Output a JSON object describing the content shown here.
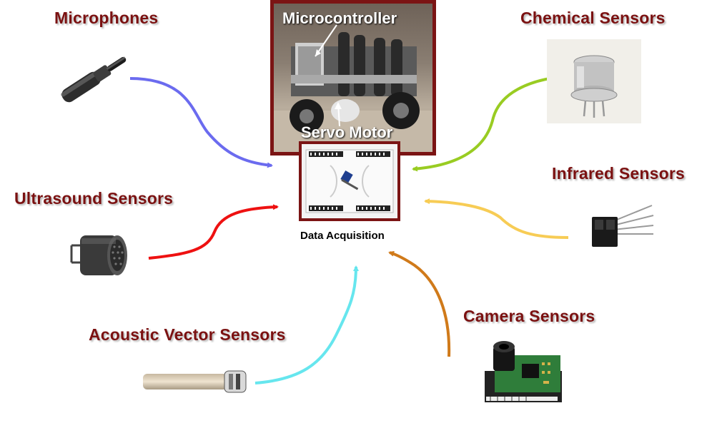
{
  "labels": {
    "microphones": "Microphones",
    "ultrasound": "Ultrasound Sensors",
    "acoustic_vector": "Acoustic Vector Sensors",
    "chemical": "Chemical Sensors",
    "infrared": "Infrared Sensors",
    "camera": "Camera Sensors",
    "microcontroller": "Microcontroller",
    "servo_motor": "Servo Motor",
    "data_acquisition": "Data Acquisition"
  },
  "arrow_colors": {
    "microphones": "#6b6bef",
    "ultrasound": "#ee1111",
    "acoustic_vector": "#66e6ee",
    "chemical": "#99cc22",
    "infrared": "#f7cc55",
    "camera": "#d07a1a"
  },
  "accent": "#7b1111"
}
